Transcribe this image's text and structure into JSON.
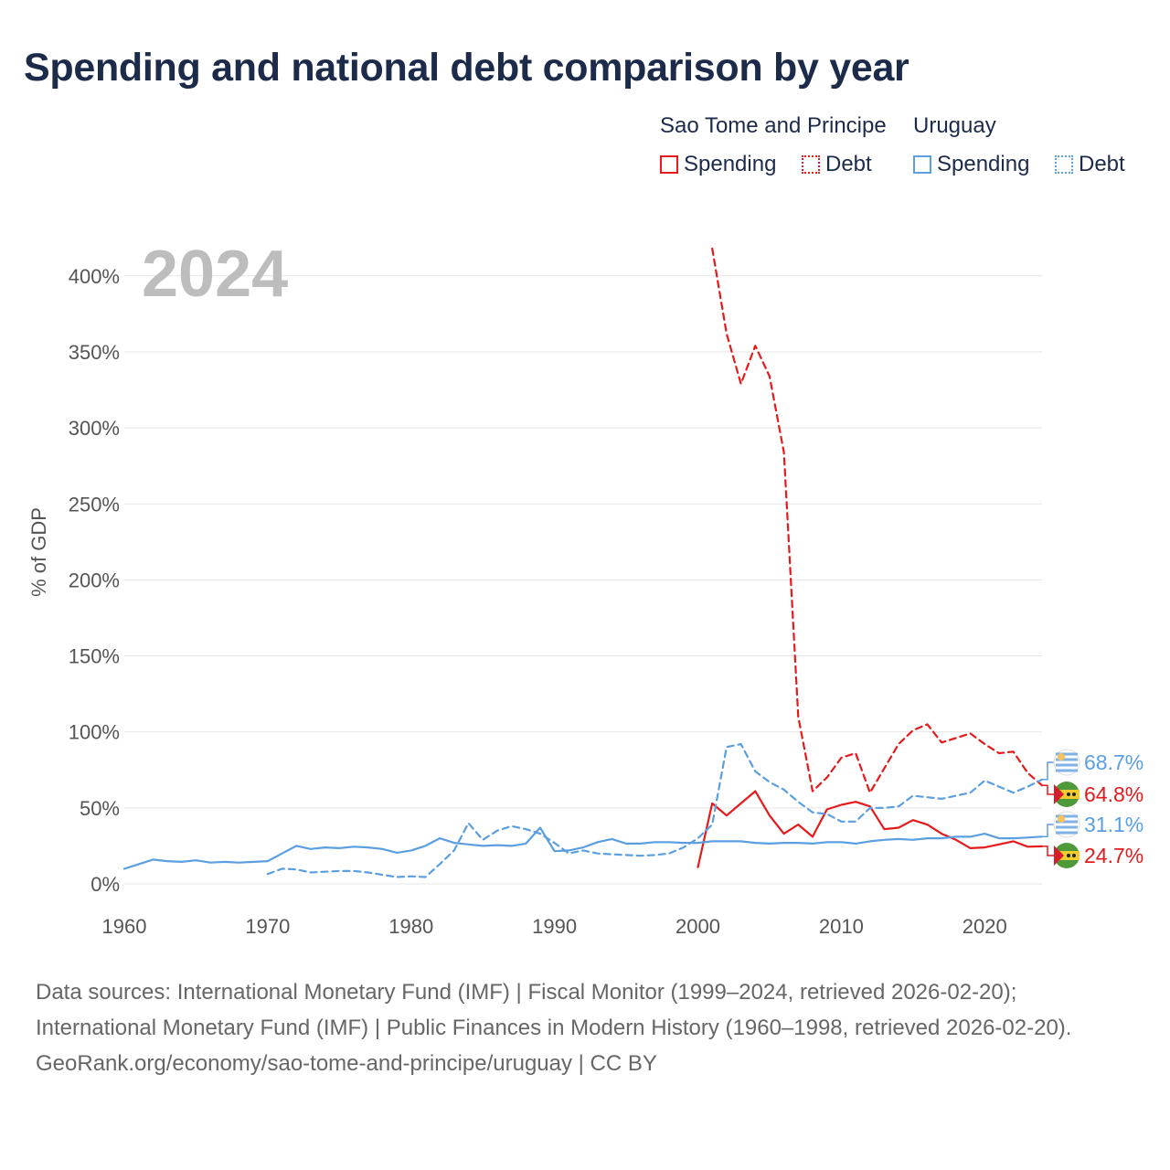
{
  "title": "Spending and national debt comparison by year",
  "legend": {
    "groups": [
      {
        "name": "Sao Tome and Principe",
        "color": "#e41a1c",
        "items": [
          {
            "label": "Spending",
            "style": "solid"
          },
          {
            "label": "Debt",
            "style": "dotted"
          }
        ]
      },
      {
        "name": "Uruguay",
        "color": "#5b9fe0",
        "items": [
          {
            "label": "Spending",
            "style": "solid"
          },
          {
            "label": "Debt",
            "style": "dotted"
          }
        ]
      }
    ]
  },
  "footer": {
    "sources": "Data sources: International Monetary Fund (IMF) | Fiscal Monitor (1999–2024, retrieved 2026-02-20); International Monetary Fund (IMF) | Public Finances in Modern History (1960–1998, retrieved 2026-02-20).",
    "credit": "GeoRank.org/economy/sao-tome-and-principe/uruguay | CC BY"
  },
  "chart_data": {
    "type": "line",
    "year_label": "2024",
    "ylabel": "% of GDP",
    "xlim": [
      1960,
      2024
    ],
    "ylim": [
      -10,
      420
    ],
    "xticks": [
      1960,
      1970,
      1980,
      1990,
      2000,
      2010,
      2020
    ],
    "yticks": [
      0,
      50,
      100,
      150,
      200,
      250,
      300,
      350,
      400
    ],
    "ytick_labels": [
      "0%",
      "50%",
      "100%",
      "150%",
      "200%",
      "250%",
      "300%",
      "350%",
      "400%"
    ],
    "colors": {
      "sao_tome": "#e41a1c",
      "uruguay": "#5b9fe0"
    },
    "series": [
      {
        "name": "Sao Tome and Principe Spending",
        "key": "stp_spending",
        "color": "#e41a1c",
        "style": "solid",
        "end_label": "24.7%",
        "end_value": 24.7,
        "x": [
          2000,
          2001,
          2002,
          2003,
          2004,
          2005,
          2006,
          2007,
          2008,
          2009,
          2010,
          2011,
          2012,
          2013,
          2014,
          2015,
          2016,
          2017,
          2018,
          2019,
          2020,
          2021,
          2022,
          2023,
          2024
        ],
        "y": [
          11,
          53,
          45,
          53,
          61,
          45,
          33,
          39,
          31,
          49,
          52,
          54,
          51,
          36,
          37,
          42,
          39,
          33,
          29,
          23.5,
          24,
          26,
          28,
          24.5,
          24.7
        ]
      },
      {
        "name": "Sao Tome and Principe Debt",
        "key": "stp_debt",
        "color": "#e41a1c",
        "style": "dashed",
        "end_label": "64.8%",
        "end_value": 64.8,
        "x": [
          2001,
          2002,
          2003,
          2004,
          2005,
          2006,
          2007,
          2008,
          2009,
          2010,
          2011,
          2012,
          2013,
          2014,
          2015,
          2016,
          2017,
          2018,
          2019,
          2020,
          2021,
          2022,
          2023,
          2024
        ],
        "y": [
          418,
          362,
          329,
          354,
          334,
          284,
          110,
          61,
          70,
          83,
          86,
          60,
          76,
          92,
          101,
          105,
          93,
          96,
          99,
          92,
          86,
          87,
          73,
          64.8
        ]
      },
      {
        "name": "Uruguay Spending",
        "key": "ury_spending",
        "color": "#5b9fe0",
        "style": "solid",
        "end_label": "31.1%",
        "end_value": 31.1,
        "x": [
          1960,
          1961,
          1962,
          1963,
          1964,
          1965,
          1966,
          1967,
          1968,
          1969,
          1970,
          1971,
          1972,
          1973,
          1974,
          1975,
          1976,
          1977,
          1978,
          1979,
          1980,
          1981,
          1982,
          1983,
          1984,
          1985,
          1986,
          1987,
          1988,
          1989,
          1990,
          1991,
          1992,
          1993,
          1994,
          1995,
          1996,
          1997,
          1998,
          1999,
          2000,
          2001,
          2002,
          2003,
          2004,
          2005,
          2006,
          2007,
          2008,
          2009,
          2010,
          2011,
          2012,
          2013,
          2014,
          2015,
          2016,
          2017,
          2018,
          2019,
          2020,
          2021,
          2022,
          2023,
          2024
        ],
        "y": [
          10,
          13,
          16,
          15,
          14.5,
          15.5,
          14,
          14.5,
          14,
          14.5,
          15,
          20,
          25,
          23,
          24,
          23.5,
          24.5,
          24,
          23,
          20.5,
          22,
          25,
          30,
          27,
          26,
          25,
          25.5,
          25,
          26.5,
          37,
          21.5,
          22,
          24,
          27.5,
          29.5,
          26.5,
          26.5,
          27.5,
          27.5,
          27,
          27,
          28,
          28,
          28,
          27,
          26.5,
          27,
          27,
          26.5,
          27.5,
          27.5,
          26.5,
          28,
          29,
          29.5,
          29,
          30,
          30,
          31,
          31,
          33,
          30,
          30,
          30.5,
          31.1
        ]
      },
      {
        "name": "Uruguay Debt",
        "key": "ury_debt",
        "color": "#5b9fe0",
        "style": "dashed",
        "end_label": "68.7%",
        "end_value": 68.7,
        "x": [
          1970,
          1971,
          1972,
          1973,
          1974,
          1975,
          1976,
          1977,
          1978,
          1979,
          1980,
          1981,
          1982,
          1983,
          1984,
          1985,
          1986,
          1987,
          1988,
          1989,
          1990,
          1991,
          1992,
          1993,
          1994,
          1995,
          1996,
          1997,
          1998,
          1999,
          2000,
          2001,
          2002,
          2003,
          2004,
          2005,
          2006,
          2007,
          2008,
          2009,
          2010,
          2011,
          2012,
          2013,
          2014,
          2015,
          2016,
          2017,
          2018,
          2019,
          2020,
          2021,
          2022,
          2023,
          2024
        ],
        "y": [
          6.5,
          10,
          9.5,
          7.5,
          8,
          8.5,
          8.5,
          7.5,
          6,
          4.5,
          5,
          4.5,
          13,
          22,
          40,
          29,
          35,
          38,
          36,
          33,
          27,
          20,
          22,
          20,
          19.5,
          19,
          18.5,
          19,
          20,
          24,
          30,
          39,
          90,
          92,
          74,
          67,
          62,
          54,
          47,
          46,
          41,
          41,
          50,
          50,
          51,
          58,
          57,
          56,
          58,
          60,
          68,
          64,
          60,
          64,
          68.7
        ]
      }
    ]
  }
}
